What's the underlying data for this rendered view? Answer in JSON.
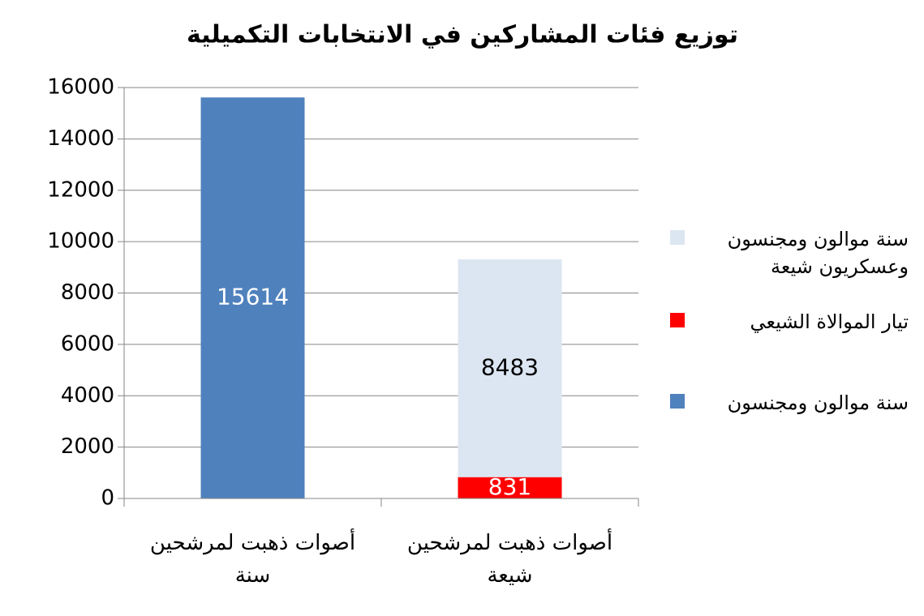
{
  "chart_data": {
    "type": "stacked-bar",
    "title": "توزيع فئات المشاركين في الانتخابات التكميلية",
    "categories": [
      "أصوات ذهبت لمرشحين سنة",
      "أصوات ذهبت لمرشحين شيعة"
    ],
    "series": [
      {
        "name": "سنة موالون ومجنسون",
        "color": "#4f81bd",
        "values": [
          15614,
          null
        ]
      },
      {
        "name": "تيار الموالاة الشيعي",
        "color": "#ff0000",
        "values": [
          null,
          831
        ]
      },
      {
        "name": "سنة موالون ومجنسون وعسكريون شيعة",
        "color": "#dce6f2",
        "values": [
          null,
          8483
        ]
      }
    ],
    "ylim": [
      0,
      16000
    ],
    "yticks": [
      0,
      2000,
      4000,
      6000,
      8000,
      10000,
      12000,
      14000,
      16000
    ],
    "grid": true,
    "legend": "right"
  }
}
